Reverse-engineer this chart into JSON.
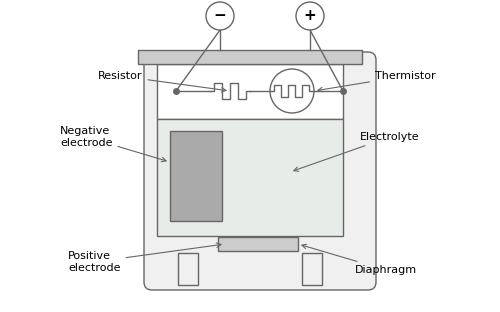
{
  "bg_color": "#ffffff",
  "line_color": "#666666",
  "fill_light": "#cccccc",
  "fill_lighter": "#e8e8e8",
  "fill_lightest": "#f0f0f0",
  "fill_dark": "#aaaaaa",
  "fill_electrolyte": "#e8ece8",
  "labels": {
    "resistor": "Resistor",
    "thermistor": "Thermistor",
    "negative_electrode": "Negative\nelectrode",
    "positive_electrode": "Positive\nelectrode",
    "electrolyte": "Electrolyte",
    "diaphragm": "Diaphragm"
  }
}
